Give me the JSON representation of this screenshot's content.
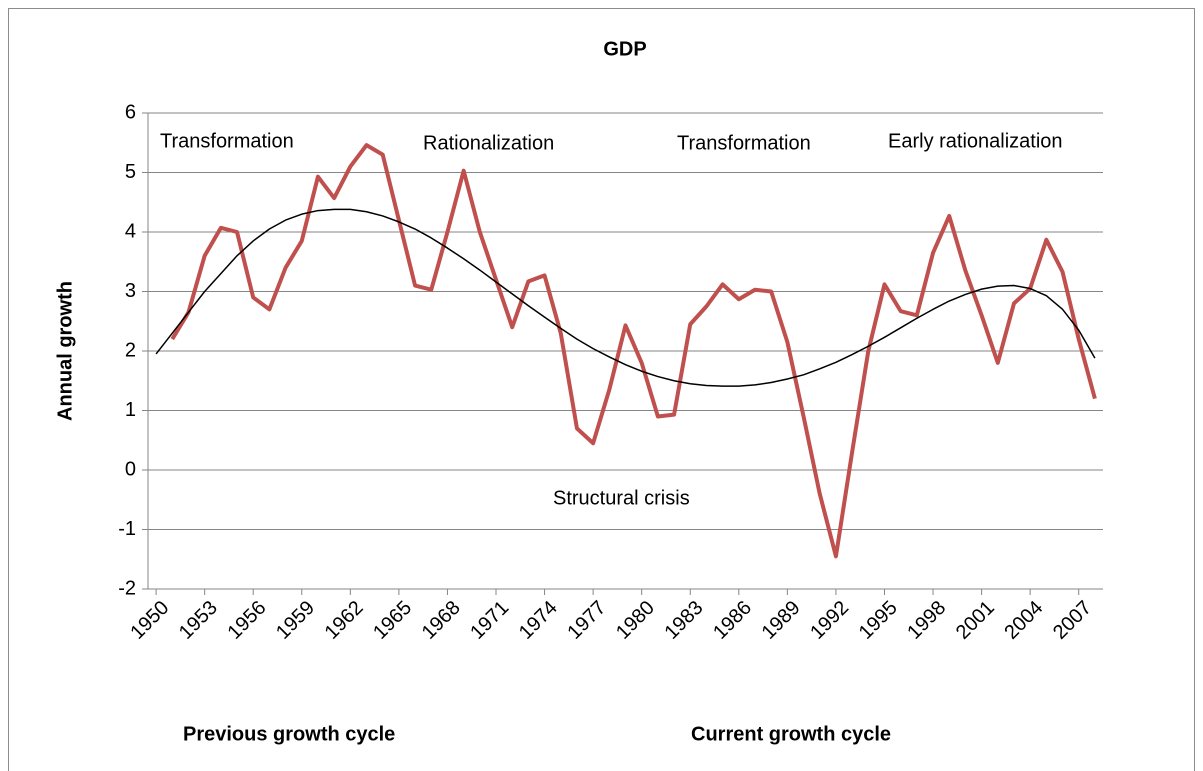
{
  "chart_data": {
    "type": "line",
    "title": "GDP",
    "y_label": "Annual growth",
    "x": [
      1950,
      1951,
      1952,
      1953,
      1954,
      1955,
      1956,
      1957,
      1958,
      1959,
      1960,
      1961,
      1962,
      1963,
      1964,
      1965,
      1966,
      1967,
      1968,
      1969,
      1970,
      1971,
      1972,
      1973,
      1974,
      1975,
      1976,
      1977,
      1978,
      1979,
      1980,
      1981,
      1982,
      1983,
      1984,
      1985,
      1986,
      1987,
      1988,
      1989,
      1990,
      1991,
      1992,
      1993,
      1994,
      1995,
      1996,
      1997,
      1998,
      1999,
      2000,
      2001,
      2002,
      2003,
      2004,
      2005,
      2006,
      2007,
      2008
    ],
    "xlim": [
      1949.5,
      2008.5
    ],
    "xticks": [
      1950,
      1953,
      1956,
      1959,
      1962,
      1965,
      1968,
      1971,
      1974,
      1977,
      1980,
      1983,
      1986,
      1989,
      1992,
      1995,
      1998,
      2001,
      2004,
      2007
    ],
    "ylim": [
      -2,
      6
    ],
    "yticks": [
      -2,
      -1,
      0,
      1,
      2,
      3,
      4,
      5,
      6
    ],
    "grid": true,
    "series": [
      {
        "color": "#c0504d",
        "width": 4,
        "values": [
          null,
          2.2,
          2.65,
          3.6,
          4.07,
          4.0,
          2.9,
          2.7,
          3.4,
          3.85,
          4.93,
          4.57,
          5.1,
          5.46,
          5.3,
          4.2,
          3.1,
          3.03,
          4.0,
          5.03,
          4.0,
          3.2,
          2.4,
          3.17,
          3.27,
          2.3,
          0.7,
          0.45,
          1.35,
          2.43,
          1.8,
          0.9,
          0.93,
          2.45,
          2.75,
          3.12,
          2.87,
          3.03,
          3.0,
          2.15,
          0.9,
          -0.4,
          -1.45,
          0.3,
          2.0,
          3.12,
          2.67,
          2.6,
          3.65,
          4.27,
          3.35,
          2.6,
          1.8,
          2.8,
          3.05,
          3.87,
          3.33,
          2.2,
          1.2
        ]
      },
      {
        "color": "#000000",
        "width": 1.5,
        "values": [
          1.95,
          2.3,
          2.65,
          3.0,
          3.3,
          3.6,
          3.85,
          4.05,
          4.2,
          4.3,
          4.36,
          4.38,
          4.38,
          4.34,
          4.27,
          4.17,
          4.05,
          3.9,
          3.73,
          3.55,
          3.36,
          3.16,
          2.96,
          2.76,
          2.57,
          2.38,
          2.2,
          2.04,
          1.9,
          1.77,
          1.66,
          1.57,
          1.5,
          1.45,
          1.42,
          1.41,
          1.41,
          1.43,
          1.47,
          1.53,
          1.6,
          1.7,
          1.81,
          1.94,
          2.08,
          2.23,
          2.39,
          2.55,
          2.7,
          2.84,
          2.95,
          3.04,
          3.09,
          3.1,
          3.05,
          2.93,
          2.7,
          2.35,
          1.88
        ]
      }
    ],
    "annotations": [
      "Transformation",
      "Rationalization",
      "Transformation",
      "Early rationalization",
      "Structural crisis",
      "Previous growth cycle",
      "Current growth cycle"
    ]
  }
}
